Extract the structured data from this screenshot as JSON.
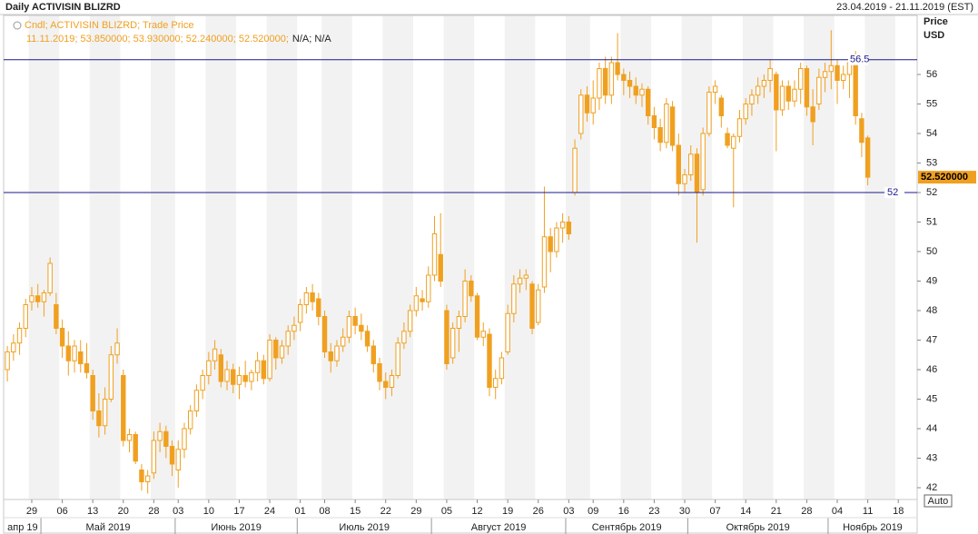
{
  "chart_data": {
    "type": "candlestick",
    "title": "Daily ACTIVISIN BLIZRD",
    "date_range": "23.04.2019 - 21.11.2019 (EST)",
    "y_label": "Price",
    "y_unit": "USD",
    "legend_name": "Cndl; ACTIVISIN BLIZRD; Trade Price",
    "legend_values": "11.11.2019; 53.850000; 53.930000; 52.240000; 52.520000;",
    "legend_na": "N/A; N/A",
    "last_price_label": "52.520000",
    "button": "Auto",
    "color": "#f0a020",
    "level_color": "#1a1a8c",
    "levels": [
      56.5,
      52
    ],
    "ylim": [
      41.6,
      58.0
    ],
    "yticks": [
      42,
      43,
      44,
      45,
      46,
      47,
      48,
      49,
      50,
      51,
      52,
      53,
      54,
      55,
      56
    ],
    "categories": [
      "23.04.2019",
      "24.04.2019",
      "25.04.2019",
      "26.04.2019",
      "29.04.2019",
      "30.04.2019",
      "01.05.2019",
      "02.05.2019",
      "03.05.2019",
      "06.05.2019",
      "07.05.2019",
      "08.05.2019",
      "09.05.2019",
      "10.05.2019",
      "13.05.2019",
      "14.05.2019",
      "15.05.2019",
      "16.05.2019",
      "17.05.2019",
      "20.05.2019",
      "21.05.2019",
      "22.05.2019",
      "23.05.2019",
      "24.05.2019",
      "28.05.2019",
      "29.05.2019",
      "30.05.2019",
      "31.05.2019",
      "03.06.2019",
      "04.06.2019",
      "05.06.2019",
      "06.06.2019",
      "07.06.2019",
      "10.06.2019",
      "11.06.2019",
      "12.06.2019",
      "13.06.2019",
      "14.06.2019",
      "17.06.2019",
      "18.06.2019",
      "19.06.2019",
      "20.06.2019",
      "21.06.2019",
      "24.06.2019",
      "25.06.2019",
      "26.06.2019",
      "27.06.2019",
      "28.06.2019",
      "01.07.2019",
      "02.07.2019",
      "03.07.2019",
      "05.07.2019",
      "08.07.2019",
      "09.07.2019",
      "10.07.2019",
      "11.07.2019",
      "12.07.2019",
      "15.07.2019",
      "16.07.2019",
      "17.07.2019",
      "18.07.2019",
      "19.07.2019",
      "22.07.2019",
      "23.07.2019",
      "24.07.2019",
      "25.07.2019",
      "26.07.2019",
      "29.07.2019",
      "30.07.2019",
      "31.07.2019",
      "01.08.2019",
      "02.08.2019",
      "05.08.2019",
      "06.08.2019",
      "07.08.2019",
      "08.08.2019",
      "09.08.2019",
      "12.08.2019",
      "13.08.2019",
      "14.08.2019",
      "15.08.2019",
      "16.08.2019",
      "19.08.2019",
      "20.08.2019",
      "21.08.2019",
      "22.08.2019",
      "23.08.2019",
      "26.08.2019",
      "27.08.2019",
      "28.08.2019",
      "29.08.2019",
      "30.08.2019",
      "03.09.2019",
      "04.09.2019",
      "05.09.2019",
      "06.09.2019",
      "09.09.2019",
      "10.09.2019",
      "11.09.2019",
      "12.09.2019",
      "13.09.2019",
      "16.09.2019",
      "17.09.2019",
      "18.09.2019",
      "19.09.2019",
      "20.09.2019",
      "23.09.2019",
      "24.09.2019",
      "25.09.2019",
      "26.09.2019",
      "27.09.2019",
      "30.09.2019",
      "01.10.2019",
      "02.10.2019",
      "03.10.2019",
      "04.10.2019",
      "07.10.2019",
      "08.10.2019",
      "09.10.2019",
      "10.10.2019",
      "11.10.2019",
      "14.10.2019",
      "15.10.2019",
      "16.10.2019",
      "17.10.2019",
      "18.10.2019",
      "21.10.2019",
      "22.10.2019",
      "23.10.2019",
      "24.10.2019",
      "25.10.2019",
      "28.10.2019",
      "29.10.2019",
      "30.10.2019",
      "31.10.2019",
      "01.11.2019",
      "04.11.2019",
      "05.11.2019",
      "06.11.2019",
      "07.11.2019",
      "08.11.2019",
      "11.11.2019"
    ],
    "open": [
      46.0,
      46.6,
      46.9,
      47.4,
      48.3,
      48.5,
      48.3,
      48.6,
      48.2,
      47.4,
      46.8,
      46.3,
      46.6,
      46.2,
      45.8,
      44.6,
      44.1,
      45.0,
      46.5,
      45.8,
      43.6,
      43.8,
      42.6,
      42.2,
      42.5,
      43.6,
      43.9,
      43.4,
      42.6,
      43.3,
      44.0,
      44.6,
      45.3,
      45.8,
      46.3,
      46.5,
      45.6,
      46.0,
      45.5,
      45.8,
      45.6,
      45.9,
      46.3,
      45.7,
      47.0,
      46.4,
      46.8,
      47.3,
      47.6,
      48.2,
      48.6,
      48.4,
      47.8,
      46.6,
      46.3,
      46.8,
      47.1,
      47.8,
      47.5,
      47.3,
      46.8,
      46.2,
      45.6,
      45.4,
      45.8,
      46.9,
      47.3,
      48.0,
      48.4,
      48.3,
      49.2,
      49.9,
      48.0,
      46.4,
      47.4,
      47.8,
      49.0,
      48.5,
      47.1,
      47.2,
      45.4,
      45.7,
      46.6,
      47.9,
      48.9,
      49.1,
      48.9,
      47.6,
      48.8,
      50.5,
      50.0,
      50.8,
      51.0,
      52.0,
      54.0,
      55.3,
      54.7,
      55.2,
      56.2,
      55.3,
      56.4,
      56.0,
      55.8,
      55.6,
      55.3,
      55.5,
      54.6,
      54.2,
      53.7,
      54.9,
      53.6,
      52.3,
      52.6,
      53.3,
      52.1,
      54.0,
      55.4,
      55.2,
      54.0,
      53.5,
      53.9,
      54.5,
      55.0,
      55.3,
      55.6,
      55.8,
      56.0,
      54.8,
      55.6,
      55.1,
      55.5,
      56.2,
      54.9,
      55.0,
      55.9,
      56.1,
      56.3,
      55.8,
      56.0,
      56.6,
      54.5,
      53.85
    ],
    "high": [
      46.8,
      47.2,
      47.6,
      48.4,
      48.8,
      48.9,
      48.7,
      49.8,
      48.6,
      47.7,
      47.3,
      47.0,
      47.0,
      46.9,
      46.0,
      45.2,
      45.4,
      46.8,
      47.4,
      46.0,
      44.0,
      43.9,
      42.8,
      42.6,
      43.9,
      44.2,
      44.1,
      43.6,
      43.6,
      44.2,
      44.8,
      45.5,
      46.0,
      46.6,
      47.0,
      46.7,
      46.3,
      46.2,
      46.1,
      46.3,
      46.0,
      46.6,
      46.5,
      47.2,
      47.1,
      47.0,
      47.5,
      47.8,
      48.4,
      48.8,
      48.9,
      48.6,
      48.0,
      46.9,
      47.0,
      47.4,
      48.0,
      48.1,
      47.9,
      47.5,
      47.0,
      46.4,
      45.9,
      46.0,
      47.1,
      47.6,
      48.2,
      48.8,
      48.7,
      49.5,
      51.2,
      51.3,
      48.2,
      47.6,
      48.0,
      49.4,
      49.2,
      48.6,
      47.6,
      47.4,
      46.0,
      46.6,
      48.2,
      49.2,
      49.4,
      49.4,
      49.0,
      48.9,
      52.2,
      50.8,
      51.0,
      51.3,
      51.2,
      53.8,
      55.5,
      55.6,
      55.8,
      56.4,
      56.6,
      56.6,
      57.4,
      56.2,
      56.1,
      55.9,
      55.7,
      55.6,
      54.9,
      54.5,
      55.2,
      55.1,
      54.0,
      52.8,
      53.6,
      53.5,
      54.2,
      55.6,
      55.8,
      55.3,
      54.2,
      54.0,
      54.8,
      55.2,
      55.5,
      55.9,
      56.0,
      56.5,
      56.1,
      55.8,
      55.8,
      55.8,
      56.4,
      56.3,
      55.5,
      56.2,
      56.4,
      57.5,
      56.5,
      56.3,
      56.6,
      56.8,
      54.7,
      53.93
    ],
    "low": [
      45.6,
      46.3,
      46.5,
      47.1,
      48.0,
      48.1,
      47.8,
      48.5,
      47.2,
      46.4,
      45.8,
      45.9,
      45.9,
      45.7,
      44.3,
      43.7,
      43.8,
      44.9,
      46.2,
      43.4,
      43.2,
      42.8,
      41.9,
      41.8,
      42.3,
      43.2,
      43.0,
      42.4,
      42.0,
      43.0,
      43.8,
      44.4,
      45.0,
      45.5,
      46.0,
      45.4,
      45.3,
      45.2,
      45.0,
      45.4,
      45.3,
      45.6,
      45.5,
      45.6,
      46.0,
      46.2,
      46.5,
      47.0,
      47.3,
      47.9,
      48.0,
      47.5,
      46.4,
      45.9,
      46.1,
      46.6,
      46.9,
      47.2,
      47.0,
      46.6,
      45.9,
      45.3,
      45.0,
      45.1,
      45.7,
      46.7,
      47.1,
      47.8,
      48.0,
      48.1,
      49.0,
      48.8,
      46.0,
      46.2,
      46.6,
      47.6,
      48.3,
      47.0,
      46.8,
      45.1,
      45.0,
      45.5,
      46.5,
      47.6,
      48.6,
      48.7,
      47.2,
      47.5,
      48.6,
      49.3,
      49.8,
      50.3,
      50.4,
      51.9,
      53.8,
      54.4,
      54.3,
      54.8,
      55.0,
      55.0,
      55.8,
      55.3,
      55.2,
      55.0,
      54.9,
      54.3,
      53.8,
      53.4,
      53.5,
      53.4,
      51.9,
      52.0,
      52.4,
      50.3,
      51.9,
      53.9,
      55.0,
      54.2,
      53.5,
      51.5,
      53.7,
      54.3,
      54.6,
      55.0,
      55.2,
      55.4,
      53.4,
      54.6,
      54.8,
      54.9,
      55.0,
      54.6,
      53.6,
      54.8,
      55.4,
      55.5,
      55.0,
      55.5,
      55.2,
      54.3,
      53.2,
      52.24
    ],
    "close": [
      46.6,
      46.9,
      47.4,
      48.2,
      48.5,
      48.3,
      48.6,
      49.6,
      47.4,
      46.8,
      46.3,
      46.8,
      46.2,
      45.9,
      44.6,
      44.1,
      45.0,
      46.5,
      46.9,
      43.6,
      43.8,
      42.9,
      42.2,
      42.4,
      43.6,
      43.9,
      43.4,
      42.8,
      43.3,
      44.0,
      44.6,
      45.3,
      45.8,
      46.3,
      46.7,
      45.6,
      46.0,
      45.5,
      45.8,
      45.6,
      45.9,
      46.3,
      45.7,
      47.0,
      46.4,
      46.8,
      47.3,
      47.5,
      48.2,
      48.6,
      48.3,
      47.8,
      46.6,
      46.3,
      46.8,
      47.1,
      47.8,
      47.5,
      47.3,
      46.8,
      46.2,
      45.6,
      45.4,
      45.8,
      46.9,
      47.3,
      48.0,
      48.5,
      48.3,
      49.2,
      50.6,
      49.0,
      46.2,
      47.4,
      47.8,
      49.0,
      48.5,
      47.1,
      47.3,
      45.4,
      45.7,
      46.4,
      47.9,
      48.9,
      49.1,
      49.2,
      47.4,
      48.7,
      50.5,
      50.0,
      50.8,
      51.0,
      50.6,
      53.5,
      55.3,
      54.7,
      55.2,
      56.2,
      55.3,
      56.4,
      56.0,
      55.8,
      55.6,
      55.3,
      55.5,
      54.6,
      54.2,
      53.7,
      55.0,
      53.6,
      52.3,
      52.6,
      53.3,
      52.0,
      54.0,
      55.4,
      55.6,
      54.6,
      53.6,
      53.9,
      54.5,
      55.0,
      55.3,
      55.6,
      55.8,
      56.2,
      54.8,
      55.6,
      55.1,
      55.5,
      56.2,
      54.9,
      54.4,
      55.9,
      56.1,
      56.3,
      55.8,
      56.0,
      56.4,
      54.6,
      53.7,
      52.52
    ],
    "xticks": [
      {
        "value": "29.04.2019",
        "label": "29"
      },
      {
        "value": "06.05.2019",
        "label": "06"
      },
      {
        "value": "13.05.2019",
        "label": "13"
      },
      {
        "value": "20.05.2019",
        "label": "20"
      },
      {
        "value": "28.05.2019",
        "label": "28"
      },
      {
        "value": "03.06.2019",
        "label": "03"
      },
      {
        "value": "10.06.2019",
        "label": "10"
      },
      {
        "value": "17.06.2019",
        "label": "17"
      },
      {
        "value": "24.06.2019",
        "label": "24"
      },
      {
        "value": "01.07.2019",
        "label": "01"
      },
      {
        "value": "08.07.2019",
        "label": "08"
      },
      {
        "value": "15.07.2019",
        "label": "15"
      },
      {
        "value": "22.07.2019",
        "label": "22"
      },
      {
        "value": "29.07.2019",
        "label": "29"
      },
      {
        "value": "05.08.2019",
        "label": "05"
      },
      {
        "value": "12.08.2019",
        "label": "12"
      },
      {
        "value": "19.08.2019",
        "label": "19"
      },
      {
        "value": "26.08.2019",
        "label": "26"
      },
      {
        "value": "03.09.2019",
        "label": "03"
      },
      {
        "value": "09.09.2019",
        "label": "09"
      },
      {
        "value": "16.09.2019",
        "label": "16"
      },
      {
        "value": "23.09.2019",
        "label": "23"
      },
      {
        "value": "30.09.2019",
        "label": "30"
      },
      {
        "value": "07.10.2019",
        "label": "07"
      },
      {
        "value": "14.10.2019",
        "label": "14"
      },
      {
        "value": "21.10.2019",
        "label": "21"
      },
      {
        "value": "28.10.2019",
        "label": "28"
      },
      {
        "value": "04.11.2019",
        "label": "04"
      },
      {
        "value": "11.11.2019",
        "label": "11"
      },
      {
        "value": "18.11.2019",
        "label": "18"
      }
    ],
    "months": [
      {
        "value": "23.04.2019",
        "label": "апр 19"
      },
      {
        "value": "01.05.2019",
        "label": "Май 2019"
      },
      {
        "value": "03.06.2019",
        "label": "Июнь 2019"
      },
      {
        "value": "01.07.2019",
        "label": "Июль 2019"
      },
      {
        "value": "01.08.2019",
        "label": "Август 2019"
      },
      {
        "value": "03.09.2019",
        "label": "Сентябрь 2019"
      },
      {
        "value": "01.10.2019",
        "label": "Октябрь 2019"
      },
      {
        "value": "01.11.2019",
        "label": "Ноябрь 2019"
      }
    ]
  }
}
